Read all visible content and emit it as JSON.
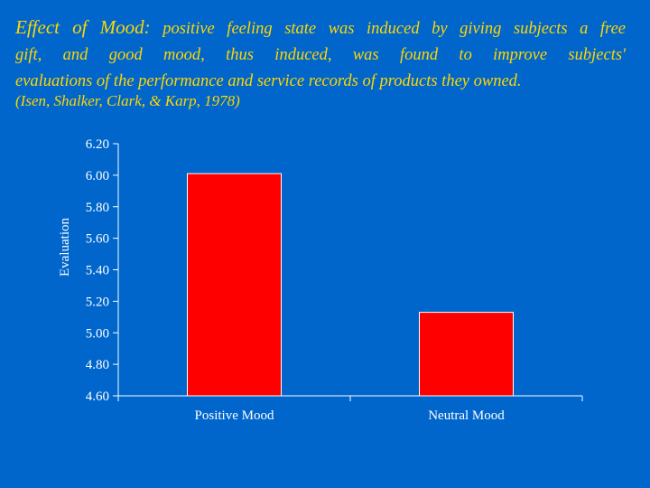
{
  "heading": {
    "lead": "Effect of Mood:",
    "body_line1": " positive feeling state was induced by giving subjects a free",
    "body_line2": "gift, and good mood, thus induced, was found to improve subjects'",
    "body_line3": "evaluations of the performance and service records of products they owned.",
    "citation": "(Isen, Shalker, Clark, & Karp, 1978)"
  },
  "colors": {
    "background": "#0066CC",
    "heading_text": "#FFD700",
    "bar_fill": "#FF0000",
    "axis": "#FFFFFF"
  },
  "chart_data": {
    "type": "bar",
    "categories": [
      "Positive Mood",
      "Neutral Mood"
    ],
    "values": [
      6.01,
      5.13
    ],
    "ylabel": "Evaluation",
    "xlabel": "",
    "ylim": [
      4.6,
      6.2
    ],
    "yticks": [
      4.6,
      4.8,
      5.0,
      5.2,
      5.4,
      5.6,
      5.8,
      6.0,
      6.2
    ],
    "ytick_labels": [
      "4.60",
      "4.80",
      "5.00",
      "5.20",
      "5.40",
      "5.60",
      "5.80",
      "6.00",
      "6.20"
    ],
    "grid": false,
    "legend": "none"
  }
}
